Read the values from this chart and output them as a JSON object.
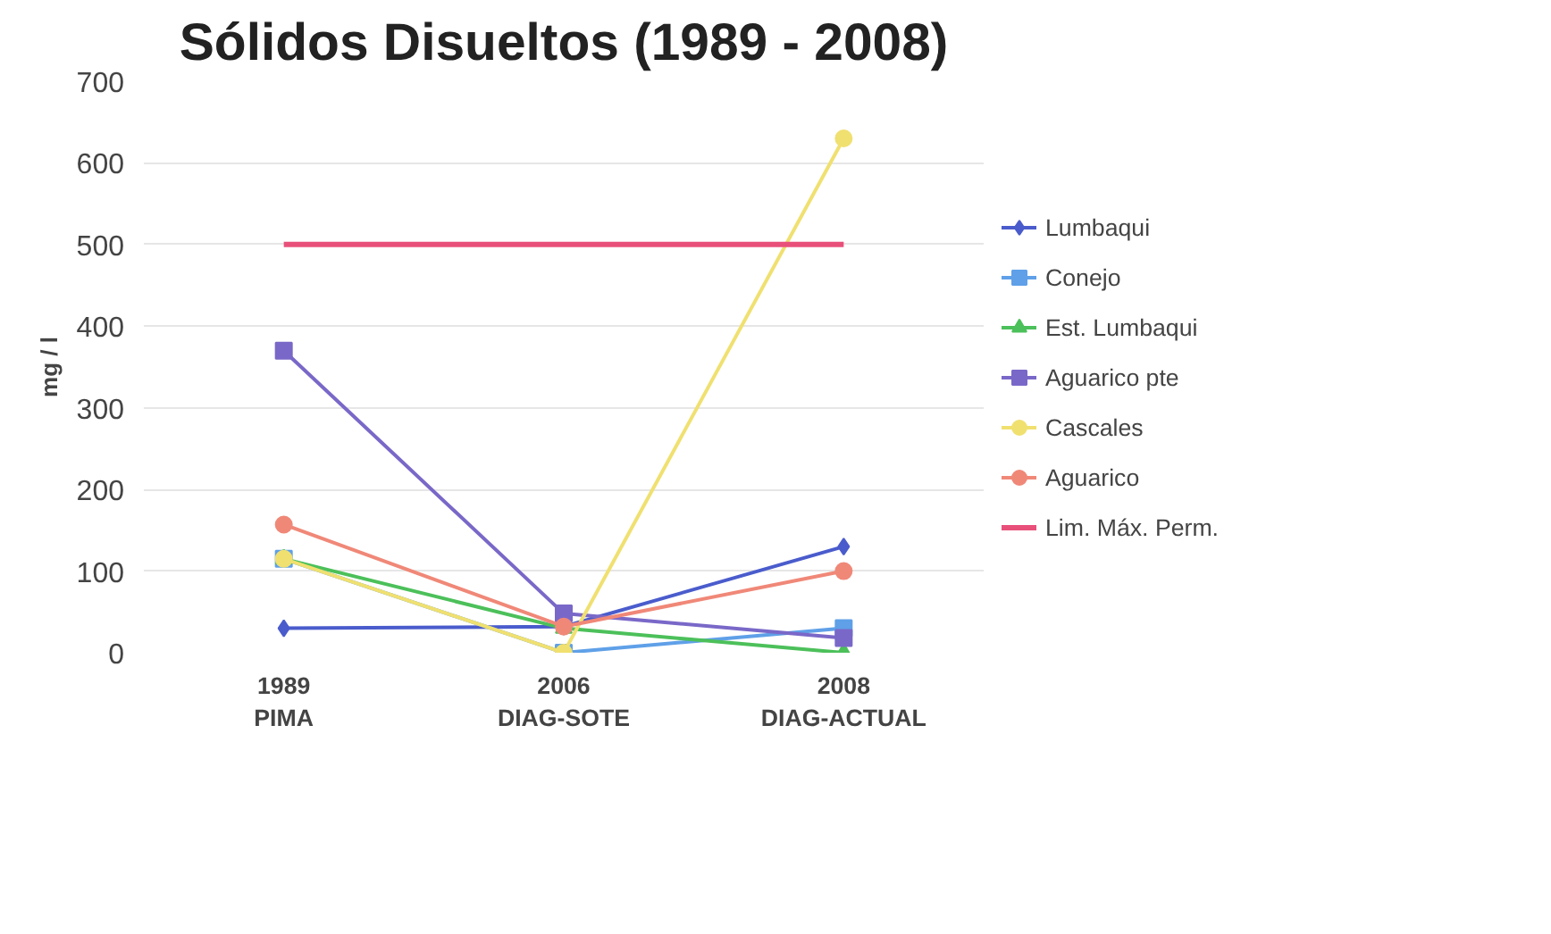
{
  "chart_data": {
    "type": "line",
    "title": "Sólidos Disueltos (1989 - 2008)",
    "ylabel": "mg / l",
    "categories": [
      "1989\nPIMA",
      "2006\nDIAG-SOTE",
      "2008\nDIAG-ACTUAL"
    ],
    "ylim": [
      0,
      700
    ],
    "yticks": [
      0,
      100,
      200,
      300,
      400,
      500,
      600,
      700
    ],
    "grid": "y",
    "legend": "right",
    "series": [
      {
        "name": "Lumbaqui",
        "color": "#4a5ccc",
        "marker": "diamond",
        "values": [
          30,
          32,
          130
        ]
      },
      {
        "name": "Conejo",
        "color": "#5fa0e8",
        "marker": "square",
        "values": [
          115,
          0,
          30
        ]
      },
      {
        "name": "Est. Lumbaqui",
        "color": "#4cc05a",
        "marker": "triangle",
        "values": [
          115,
          30,
          0
        ]
      },
      {
        "name": "Aguarico pte",
        "color": "#7a68c8",
        "marker": "square",
        "values": [
          370,
          48,
          18
        ]
      },
      {
        "name": "Cascales",
        "color": "#f0e070",
        "marker": "circle",
        "values": [
          115,
          0,
          630
        ]
      },
      {
        "name": "Aguarico",
        "color": "#f08878",
        "marker": "circle",
        "values": [
          157,
          32,
          100
        ]
      },
      {
        "name": "Lim. Máx. Perm.",
        "color": "#e8507a",
        "marker": "none",
        "values": [
          500,
          500,
          500
        ]
      }
    ]
  }
}
